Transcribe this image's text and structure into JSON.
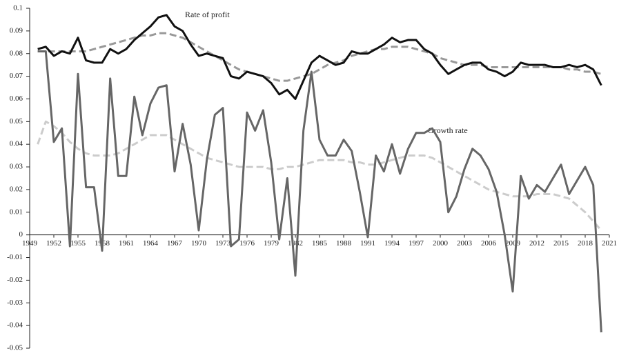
{
  "chart_data": {
    "type": "line",
    "annotations": [
      "Rate of profit",
      "Growth rate"
    ],
    "x": [
      1950,
      1951,
      1952,
      1953,
      1954,
      1955,
      1956,
      1957,
      1958,
      1959,
      1960,
      1961,
      1962,
      1963,
      1964,
      1965,
      1966,
      1967,
      1968,
      1969,
      1970,
      1971,
      1972,
      1973,
      1974,
      1975,
      1976,
      1977,
      1978,
      1979,
      1980,
      1981,
      1982,
      1983,
      1984,
      1985,
      1986,
      1987,
      1988,
      1989,
      1990,
      1991,
      1992,
      1993,
      1994,
      1995,
      1996,
      1997,
      1998,
      1999,
      2000,
      2001,
      2002,
      2003,
      2004,
      2005,
      2006,
      2007,
      2008,
      2009,
      2010,
      2011,
      2012,
      2013,
      2014,
      2015,
      2016,
      2017,
      2018,
      2019,
      2020
    ],
    "series": [
      {
        "color": "#999999",
        "style": "dashed",
        "values": [
          0.081,
          0.081,
          0.081,
          0.081,
          0.081,
          0.081,
          0.081,
          0.082,
          0.083,
          0.084,
          0.085,
          0.086,
          0.087,
          0.088,
          0.088,
          0.089,
          0.089,
          0.088,
          0.087,
          0.085,
          0.083,
          0.081,
          0.079,
          0.077,
          0.075,
          0.073,
          0.072,
          0.071,
          0.07,
          0.069,
          0.068,
          0.068,
          0.069,
          0.07,
          0.071,
          0.073,
          0.075,
          0.076,
          0.077,
          0.079,
          0.08,
          0.081,
          0.082,
          0.082,
          0.083,
          0.083,
          0.083,
          0.082,
          0.081,
          0.08,
          0.078,
          0.077,
          0.076,
          0.075,
          0.075,
          0.075,
          0.074,
          0.074,
          0.074,
          0.074,
          0.074,
          0.074,
          0.074,
          0.074,
          0.074,
          0.074,
          0.073,
          0.073,
          0.072,
          0.072,
          0.071
        ]
      },
      {
        "color": "#cccccc",
        "style": "dashed",
        "values": [
          0.04,
          0.05,
          0.048,
          0.045,
          0.041,
          0.038,
          0.036,
          0.035,
          0.035,
          0.035,
          0.036,
          0.038,
          0.04,
          0.042,
          0.044,
          0.044,
          0.044,
          0.042,
          0.04,
          0.038,
          0.036,
          0.034,
          0.033,
          0.032,
          0.031,
          0.03,
          0.03,
          0.03,
          0.03,
          0.029,
          0.029,
          0.03,
          0.03,
          0.031,
          0.032,
          0.033,
          0.033,
          0.033,
          0.033,
          0.032,
          0.032,
          0.031,
          0.031,
          0.032,
          0.033,
          0.034,
          0.035,
          0.035,
          0.035,
          0.034,
          0.032,
          0.03,
          0.028,
          0.026,
          0.024,
          0.022,
          0.02,
          0.019,
          0.018,
          0.017,
          0.017,
          0.017,
          0.018,
          0.018,
          0.018,
          0.017,
          0.016,
          0.013,
          0.01,
          0.006,
          0.002
        ]
      },
      {
        "color": "#111111",
        "style": "solid",
        "values": [
          0.082,
          0.083,
          0.079,
          0.081,
          0.08,
          0.087,
          0.077,
          0.076,
          0.076,
          0.082,
          0.08,
          0.082,
          0.086,
          0.089,
          0.092,
          0.096,
          0.097,
          0.092,
          0.09,
          0.084,
          0.079,
          0.08,
          0.079,
          0.078,
          0.07,
          0.069,
          0.072,
          0.071,
          0.07,
          0.067,
          0.062,
          0.064,
          0.06,
          0.068,
          0.076,
          0.079,
          0.077,
          0.075,
          0.076,
          0.081,
          0.08,
          0.08,
          0.082,
          0.084,
          0.087,
          0.085,
          0.086,
          0.086,
          0.082,
          0.08,
          0.075,
          0.071,
          0.073,
          0.075,
          0.076,
          0.076,
          0.073,
          0.072,
          0.07,
          0.072,
          0.076,
          0.075,
          0.075,
          0.075,
          0.074,
          0.074,
          0.075,
          0.074,
          0.075,
          0.073,
          0.066
        ]
      },
      {
        "color": "#666666",
        "style": "solid",
        "values": [
          0.081,
          0.081,
          0.041,
          0.047,
          -0.005,
          0.071,
          0.021,
          0.021,
          -0.007,
          0.069,
          0.026,
          0.026,
          0.061,
          0.044,
          0.058,
          0.065,
          0.066,
          0.028,
          0.049,
          0.031,
          0.002,
          0.033,
          0.053,
          0.056,
          -0.005,
          -0.002,
          0.054,
          0.046,
          0.055,
          0.032,
          -0.002,
          0.025,
          -0.018,
          0.046,
          0.072,
          0.042,
          0.035,
          0.035,
          0.042,
          0.037,
          0.019,
          -0.001,
          0.035,
          0.028,
          0.04,
          0.027,
          0.038,
          0.045,
          0.045,
          0.047,
          0.041,
          0.01,
          0.017,
          0.029,
          0.038,
          0.035,
          0.029,
          0.019,
          0.0,
          -0.025,
          0.026,
          0.016,
          0.022,
          0.019,
          0.025,
          0.031,
          0.018,
          0.024,
          0.03,
          0.022,
          -0.043
        ]
      }
    ],
    "xlim": [
      1949,
      2021
    ],
    "xticks": [
      1949,
      1952,
      1955,
      1958,
      1961,
      1964,
      1967,
      1970,
      1973,
      1976,
      1979,
      1982,
      1985,
      1988,
      1991,
      1994,
      1997,
      2000,
      2003,
      2006,
      2009,
      2012,
      2015,
      2018,
      2021
    ],
    "ylim": [
      -0.05,
      0.1
    ],
    "yticks": [
      0.1,
      0.09,
      0.08,
      0.07,
      0.06,
      0.05,
      0.04,
      0.03,
      0.02,
      0.01,
      0,
      -0.01,
      -0.02,
      -0.03,
      -0.04,
      -0.05
    ]
  }
}
